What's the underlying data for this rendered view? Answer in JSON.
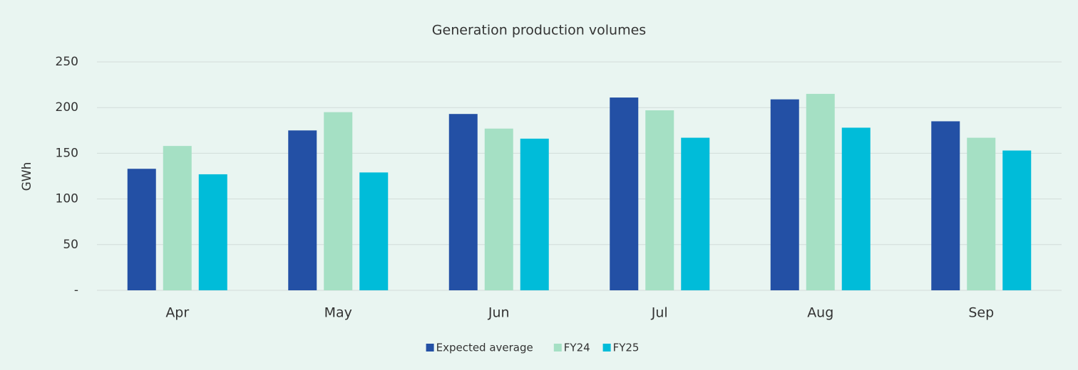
{
  "chart_data": {
    "type": "bar",
    "title": "Generation production volumes",
    "y_label": "GWh",
    "categories": [
      "Apr",
      "May",
      "Jun",
      "Jul",
      "Aug",
      "Sep"
    ],
    "series": [
      {
        "name": "Expected average",
        "color": "#2350a5",
        "values": [
          133,
          175,
          193,
          211,
          209,
          185
        ]
      },
      {
        "name": "FY24",
        "color": "#a5e0c4",
        "values": [
          158,
          195,
          177,
          197,
          215,
          167
        ]
      },
      {
        "name": "FY25",
        "color": "#00bcd9",
        "values": [
          127,
          129,
          166,
          167,
          178,
          153
        ]
      }
    ],
    "ylim": [
      0,
      250
    ],
    "yticks": [
      {
        "value": 0,
        "label": "-"
      },
      50,
      100,
      150,
      200,
      250
    ],
    "grid": true,
    "legend": "bottom"
  }
}
